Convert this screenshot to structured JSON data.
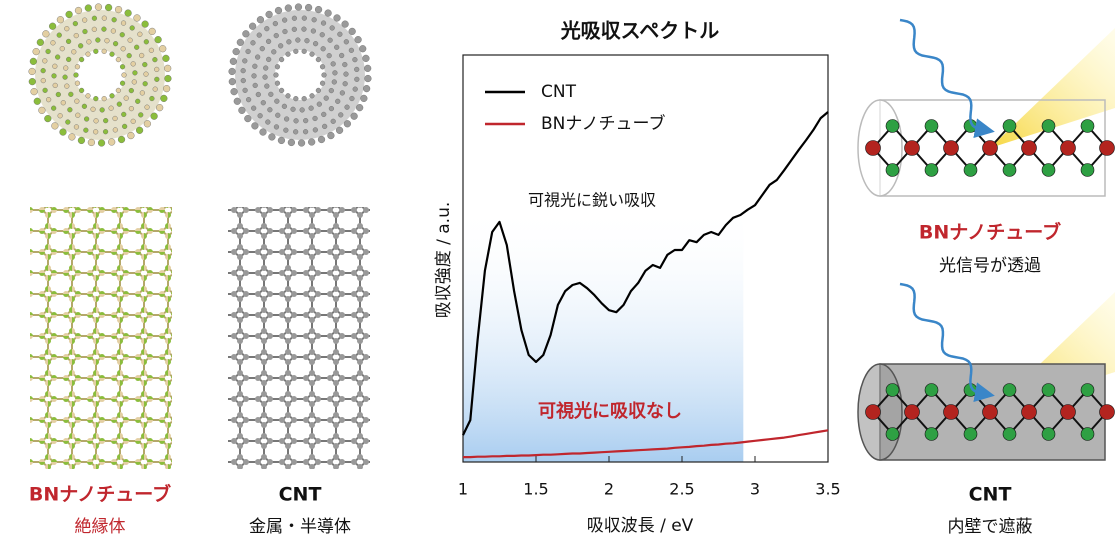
{
  "left_panel": {
    "tubes": [
      {
        "name": "BNナノチューブ",
        "description": "絶縁体"
      },
      {
        "name": "CNT",
        "description": "金属・半導体"
      }
    ]
  },
  "chart_data": {
    "type": "line",
    "title": "光吸収スペクトル",
    "x_label": "吸収波長 / eV",
    "y_label": "吸収強度 / a.u.",
    "annotations": [
      "可視光に鋭い吸収",
      "可視光に吸収なし"
    ],
    "legend": "upper left",
    "xlim": [
      1,
      3.5
    ],
    "xticks": [
      1,
      1.5,
      2,
      2.5,
      3,
      3.5
    ],
    "ylim": [
      0,
      1
    ],
    "visible_range": [
      1,
      2.92
    ],
    "x": [
      1.0,
      1.05,
      1.1,
      1.15,
      1.2,
      1.25,
      1.3,
      1.35,
      1.4,
      1.45,
      1.5,
      1.55,
      1.6,
      1.65,
      1.7,
      1.75,
      1.8,
      1.85,
      1.9,
      1.95,
      2.0,
      2.05,
      2.1,
      2.15,
      2.2,
      2.25,
      2.3,
      2.35,
      2.4,
      2.45,
      2.5,
      2.55,
      2.6,
      2.65,
      2.7,
      2.75,
      2.8,
      2.85,
      2.9,
      2.95,
      3.0,
      3.05,
      3.1,
      3.15,
      3.2,
      3.25,
      3.3,
      3.35,
      3.4,
      3.45,
      3.5
    ],
    "series": [
      {
        "name": "CNT",
        "color": "#000000",
        "values": [
          0.066,
          0.103,
          0.3,
          0.47,
          0.565,
          0.59,
          0.533,
          0.42,
          0.324,
          0.263,
          0.246,
          0.263,
          0.312,
          0.386,
          0.42,
          0.435,
          0.44,
          0.427,
          0.41,
          0.39,
          0.373,
          0.368,
          0.386,
          0.42,
          0.44,
          0.47,
          0.484,
          0.477,
          0.509,
          0.521,
          0.521,
          0.545,
          0.54,
          0.558,
          0.565,
          0.558,
          0.582,
          0.6,
          0.607,
          0.62,
          0.631,
          0.656,
          0.681,
          0.693,
          0.717,
          0.742,
          0.767,
          0.791,
          0.816,
          0.845,
          0.86
        ]
      },
      {
        "name": "BNナノチューブ",
        "color": "#c0262d",
        "values": [
          0.012,
          0.012,
          0.013,
          0.013,
          0.014,
          0.014,
          0.015,
          0.015,
          0.016,
          0.016,
          0.017,
          0.018,
          0.018,
          0.019,
          0.02,
          0.021,
          0.021,
          0.022,
          0.023,
          0.024,
          0.025,
          0.026,
          0.027,
          0.028,
          0.029,
          0.03,
          0.031,
          0.032,
          0.033,
          0.035,
          0.036,
          0.037,
          0.039,
          0.04,
          0.042,
          0.043,
          0.045,
          0.046,
          0.048,
          0.05,
          0.052,
          0.054,
          0.056,
          0.058,
          0.06,
          0.063,
          0.066,
          0.069,
          0.072,
          0.075,
          0.078
        ]
      }
    ]
  },
  "right_panel": {
    "cases": [
      {
        "name": "BNナノチューブ",
        "description": "光信号が透過"
      },
      {
        "name": "CNT",
        "description": "内壁で遮蔽"
      }
    ]
  }
}
